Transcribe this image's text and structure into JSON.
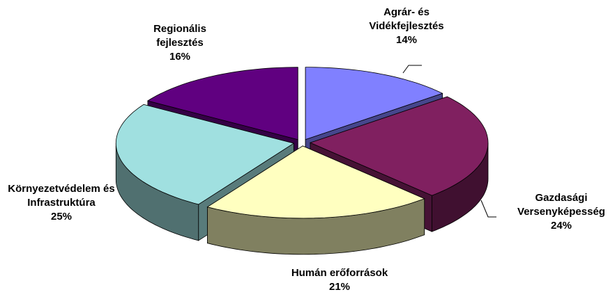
{
  "chart_data": {
    "type": "pie3d",
    "categories": [
      "Agrár- és Vidékfejlesztés",
      "Gazdasági Versenyképesség",
      "Humán erőforrások",
      "Környezetvédelem és Infrastruktúra",
      "Regionális fejlesztés"
    ],
    "values": [
      14,
      24,
      21,
      25,
      16
    ],
    "value_labels": [
      "14%",
      "24%",
      "21%",
      "25%",
      "16%"
    ],
    "colors": [
      "#8080ff",
      "#802060",
      "#ffffc0",
      "#a0e0e0",
      "#600080"
    ]
  }
}
